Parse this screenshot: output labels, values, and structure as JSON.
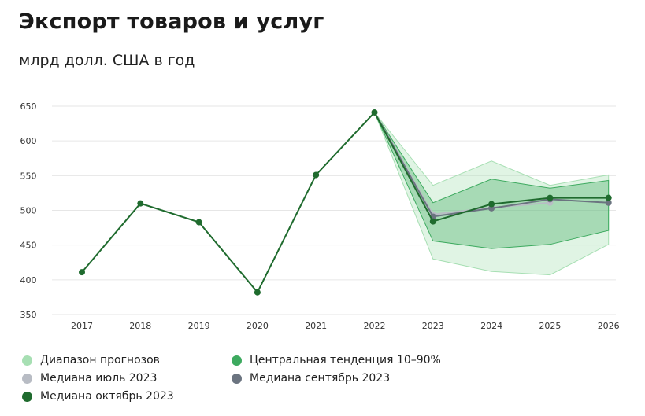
{
  "title": "Экспорт товаров и услуг",
  "subtitle": "млрд долл. США в год",
  "colors": {
    "forecast_range": "#a7dfb3",
    "central_band": "#3daa5f",
    "median_july": "#b8bcc4",
    "median_sept": "#6b7480",
    "median_oct": "#1f6b2e"
  },
  "legend": [
    {
      "key": "forecast_range",
      "label": "Диапазон прогнозов"
    },
    {
      "key": "central_band",
      "label": "Центральная тенденция 10–90%"
    },
    {
      "key": "median_july",
      "label": "Медиана июль 2023"
    },
    {
      "key": "median_sept",
      "label": "Медиана сентябрь 2023"
    },
    {
      "key": "median_oct",
      "label": "Медиана октябрь 2023"
    }
  ],
  "chart_data": {
    "type": "line",
    "x": [
      "2017",
      "2018",
      "2019",
      "2020",
      "2021",
      "2022",
      "2023",
      "2024",
      "2025",
      "2026"
    ],
    "ylim": [
      350,
      650
    ],
    "yticks": [
      350,
      400,
      450,
      500,
      550,
      600,
      650
    ],
    "grid": true,
    "legend_position": "bottom",
    "series": [
      {
        "name": "Медиана октябрь 2023",
        "values": [
          411,
          510,
          483,
          382,
          551,
          641,
          484,
          509,
          518,
          518
        ]
      },
      {
        "name": "Медиана сентябрь 2023",
        "values": [
          null,
          null,
          null,
          null,
          null,
          641,
          491,
          503,
          516,
          511
        ]
      },
      {
        "name": "Медиана июль 2023",
        "values": [
          null,
          null,
          null,
          null,
          null,
          641,
          494,
          504,
          511,
          null
        ]
      }
    ],
    "bands": [
      {
        "name": "Диапазон прогнозов",
        "lower": [
          null,
          null,
          null,
          null,
          null,
          641,
          430,
          412,
          407,
          451
        ],
        "upper": [
          null,
          null,
          null,
          null,
          null,
          641,
          536,
          571,
          536,
          551
        ]
      },
      {
        "name": "Центральная тенденция 10–90%",
        "lower": [
          null,
          null,
          null,
          null,
          null,
          641,
          456,
          445,
          451,
          471
        ],
        "upper": [
          null,
          null,
          null,
          null,
          null,
          641,
          511,
          545,
          532,
          543
        ]
      }
    ]
  }
}
